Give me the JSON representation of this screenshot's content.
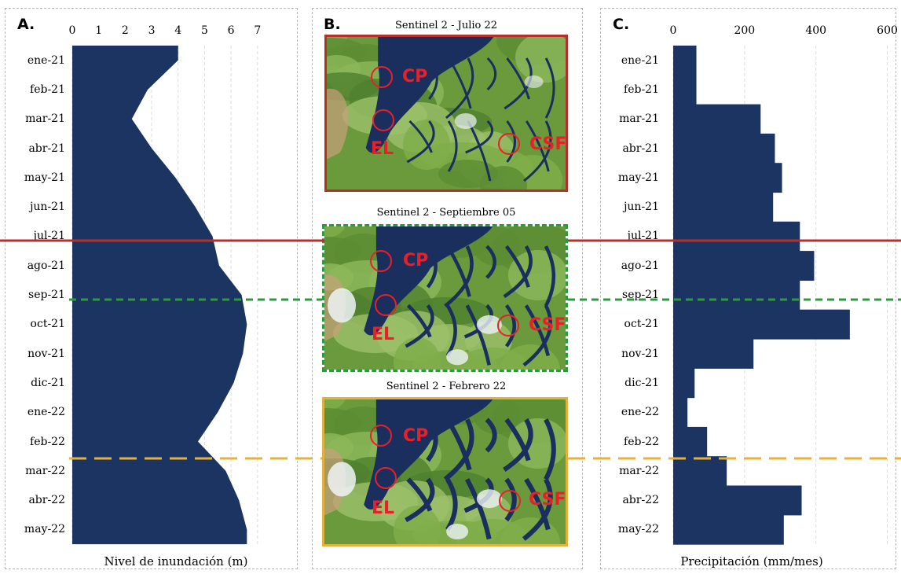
{
  "months": [
    "ene-21",
    "feb-21",
    "mar-21",
    "abr-21",
    "may-21",
    "jun-21",
    "jul-21",
    "ago-21",
    "sep-21",
    "oct-21",
    "nov-21",
    "dic-21",
    "ene-22",
    "feb-22",
    "mar-22",
    "abr-22",
    "may-22"
  ],
  "panel_a": {
    "label": "A.",
    "xlabel": "Nivel de inundación (m)"
  },
  "panel_b": {
    "label": "B.",
    "maps": [
      {
        "title": "Sentinel 2 - Julio 22",
        "sites": [
          "CP",
          "EL",
          "CSF"
        ],
        "frame_color": "#b5302d"
      },
      {
        "title": "Sentinel 2 - Septiembre 05",
        "sites": [
          "CP",
          "EL",
          "CSF"
        ],
        "frame_color": "#2f9a3d"
      },
      {
        "title": "Sentinel 2 - Febrero 22",
        "sites": [
          "CP",
          "EL",
          "CSF"
        ],
        "frame_color": "#e3b23c"
      }
    ]
  },
  "panel_c": {
    "label": "C.",
    "xlabel": "Precipitación (mm/mes)"
  },
  "reference_lines": {
    "jul22": "#b5302d",
    "sep05": "#2f9a3d",
    "feb22": "#e3b23c"
  },
  "colors": {
    "fill": "#1b3461",
    "site": "#e8202a"
  },
  "chart_data": [
    {
      "type": "area",
      "title": "",
      "xlabel": "Nivel de inundación (m)",
      "ylabel": "",
      "categories": [
        "ene-21",
        "feb-21",
        "mar-21",
        "abr-21",
        "may-21",
        "jun-21",
        "jul-21",
        "ago-21",
        "sep-21",
        "oct-21",
        "nov-21",
        "dic-21",
        "ene-22",
        "feb-22",
        "mar-22",
        "abr-22",
        "may-22"
      ],
      "x_ticks": [
        0,
        1,
        2,
        3,
        4,
        5,
        6,
        7
      ],
      "xlim": [
        0,
        7.6
      ],
      "values": [
        4.0,
        2.85,
        2.25,
        3.0,
        3.9,
        4.65,
        5.3,
        5.55,
        6.4,
        6.6,
        6.45,
        6.1,
        5.5,
        4.75,
        5.8,
        6.3,
        6.6
      ],
      "orientation": "horizontal",
      "grid": true
    },
    {
      "type": "bar",
      "title": "",
      "xlabel": "Precipitación (mm/mes)",
      "ylabel": "",
      "categories": [
        "ene-21",
        "feb-21",
        "mar-21",
        "abr-21",
        "may-21",
        "jun-21",
        "jul-21",
        "ago-21",
        "sep-21",
        "oct-21",
        "nov-21",
        "dic-21",
        "ene-22",
        "feb-22",
        "mar-22",
        "abr-22",
        "may-22"
      ],
      "x_ticks": [
        0,
        200,
        400,
        600
      ],
      "xlim": [
        0,
        645
      ],
      "values": [
        65,
        65,
        245,
        285,
        305,
        280,
        355,
        395,
        355,
        495,
        225,
        60,
        40,
        95,
        150,
        360,
        310
      ],
      "orientation": "horizontal",
      "grid": true
    }
  ]
}
